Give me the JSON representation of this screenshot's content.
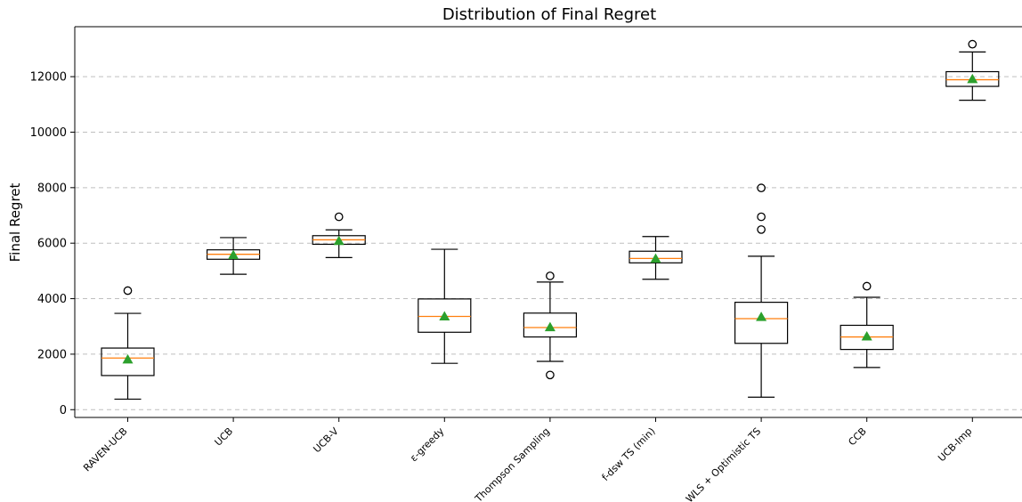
{
  "chart_data": {
    "type": "boxplot",
    "title": "Distribution of Final Regret",
    "xlabel": "",
    "ylabel": "Final Regret",
    "ylim": [
      -280,
      13800
    ],
    "yticks": [
      0,
      2000,
      4000,
      6000,
      8000,
      10000,
      12000
    ],
    "grid": "horizontal-dashed",
    "median_color": "#ff7f0e",
    "mean_marker_color": "#2ca02c",
    "categories": [
      "RAVEN-UCB",
      "UCB",
      "UCB-V",
      "ε-greedy",
      "Thompson Sampling",
      "f-dsw TS (min)",
      "WLS + Optimistic TS",
      "CCB",
      "UCB-Imp"
    ],
    "boxes": [
      {
        "name": "RAVEN-UCB",
        "whislo": 380,
        "q1": 1230,
        "med": 1860,
        "q3": 2220,
        "whishi": 3470,
        "mean": 1810,
        "fliers": [
          4290
        ]
      },
      {
        "name": "UCB",
        "whislo": 4880,
        "q1": 5420,
        "med": 5600,
        "q3": 5760,
        "whishi": 6200,
        "mean": 5570,
        "fliers": []
      },
      {
        "name": "UCB-V",
        "whislo": 5480,
        "q1": 5960,
        "med": 6120,
        "q3": 6270,
        "whishi": 6480,
        "mean": 6080,
        "fliers": [
          6950
        ]
      },
      {
        "name": "ε-greedy",
        "whislo": 1670,
        "q1": 2790,
        "med": 3360,
        "q3": 3990,
        "whishi": 5780,
        "mean": 3360,
        "fliers": []
      },
      {
        "name": "Thompson Sampling",
        "whislo": 1740,
        "q1": 2620,
        "med": 2960,
        "q3": 3480,
        "whishi": 4600,
        "mean": 2970,
        "fliers": [
          4820,
          1250
        ]
      },
      {
        "name": "f-dsw TS (min)",
        "whislo": 4700,
        "q1": 5290,
        "med": 5450,
        "q3": 5710,
        "whishi": 6240,
        "mean": 5440,
        "fliers": []
      },
      {
        "name": "WLS + Optimistic TS",
        "whislo": 450,
        "q1": 2390,
        "med": 3280,
        "q3": 3870,
        "whishi": 5530,
        "mean": 3340,
        "fliers": [
          7990,
          6950,
          6490
        ]
      },
      {
        "name": "CCB",
        "whislo": 1520,
        "q1": 2170,
        "med": 2620,
        "q3": 3040,
        "whishi": 4050,
        "mean": 2640,
        "fliers": [
          4450
        ]
      },
      {
        "name": "UCB-Imp",
        "whislo": 11150,
        "q1": 11650,
        "med": 11890,
        "q3": 12180,
        "whishi": 12890,
        "mean": 11910,
        "fliers": [
          13170
        ]
      }
    ]
  }
}
